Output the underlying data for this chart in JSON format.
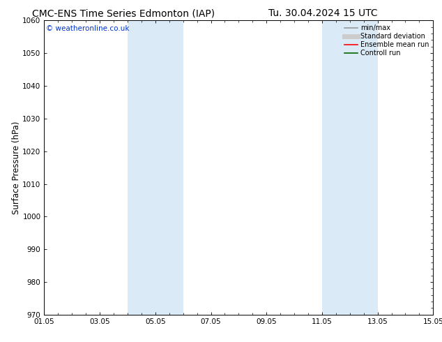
{
  "title_left": "CMC-ENS Time Series Edmonton (IAP)",
  "title_right": "Tu. 30.04.2024 15 UTC",
  "ylabel": "Surface Pressure (hPa)",
  "ylim": [
    970,
    1060
  ],
  "yticks": [
    970,
    980,
    990,
    1000,
    1010,
    1020,
    1030,
    1040,
    1050,
    1060
  ],
  "xlim_start": 0,
  "xlim_end": 14,
  "xtick_labels": [
    "01.05",
    "03.05",
    "05.05",
    "07.05",
    "09.05",
    "11.05",
    "13.05",
    "15.05"
  ],
  "xtick_positions": [
    0,
    2,
    4,
    6,
    8,
    10,
    12,
    14
  ],
  "shaded_bands": [
    {
      "x_start": 3.0,
      "x_end": 5.0
    },
    {
      "x_start": 10.0,
      "x_end": 12.0
    }
  ],
  "shaded_color": "#daeaf7",
  "background_color": "#ffffff",
  "watermark_text": "© weatheronline.co.uk",
  "watermark_color": "#0033cc",
  "legend_entries": [
    {
      "label": "min/max",
      "color": "#999999",
      "lw": 1.2
    },
    {
      "label": "Standard deviation",
      "color": "#cccccc",
      "lw": 5
    },
    {
      "label": "Ensemble mean run",
      "color": "#ff0000",
      "lw": 1.2
    },
    {
      "label": "Controll run",
      "color": "#006600",
      "lw": 1.2
    }
  ],
  "tick_fontsize": 7.5,
  "label_fontsize": 8.5,
  "title_fontsize": 10,
  "minor_xtick_count": 4
}
